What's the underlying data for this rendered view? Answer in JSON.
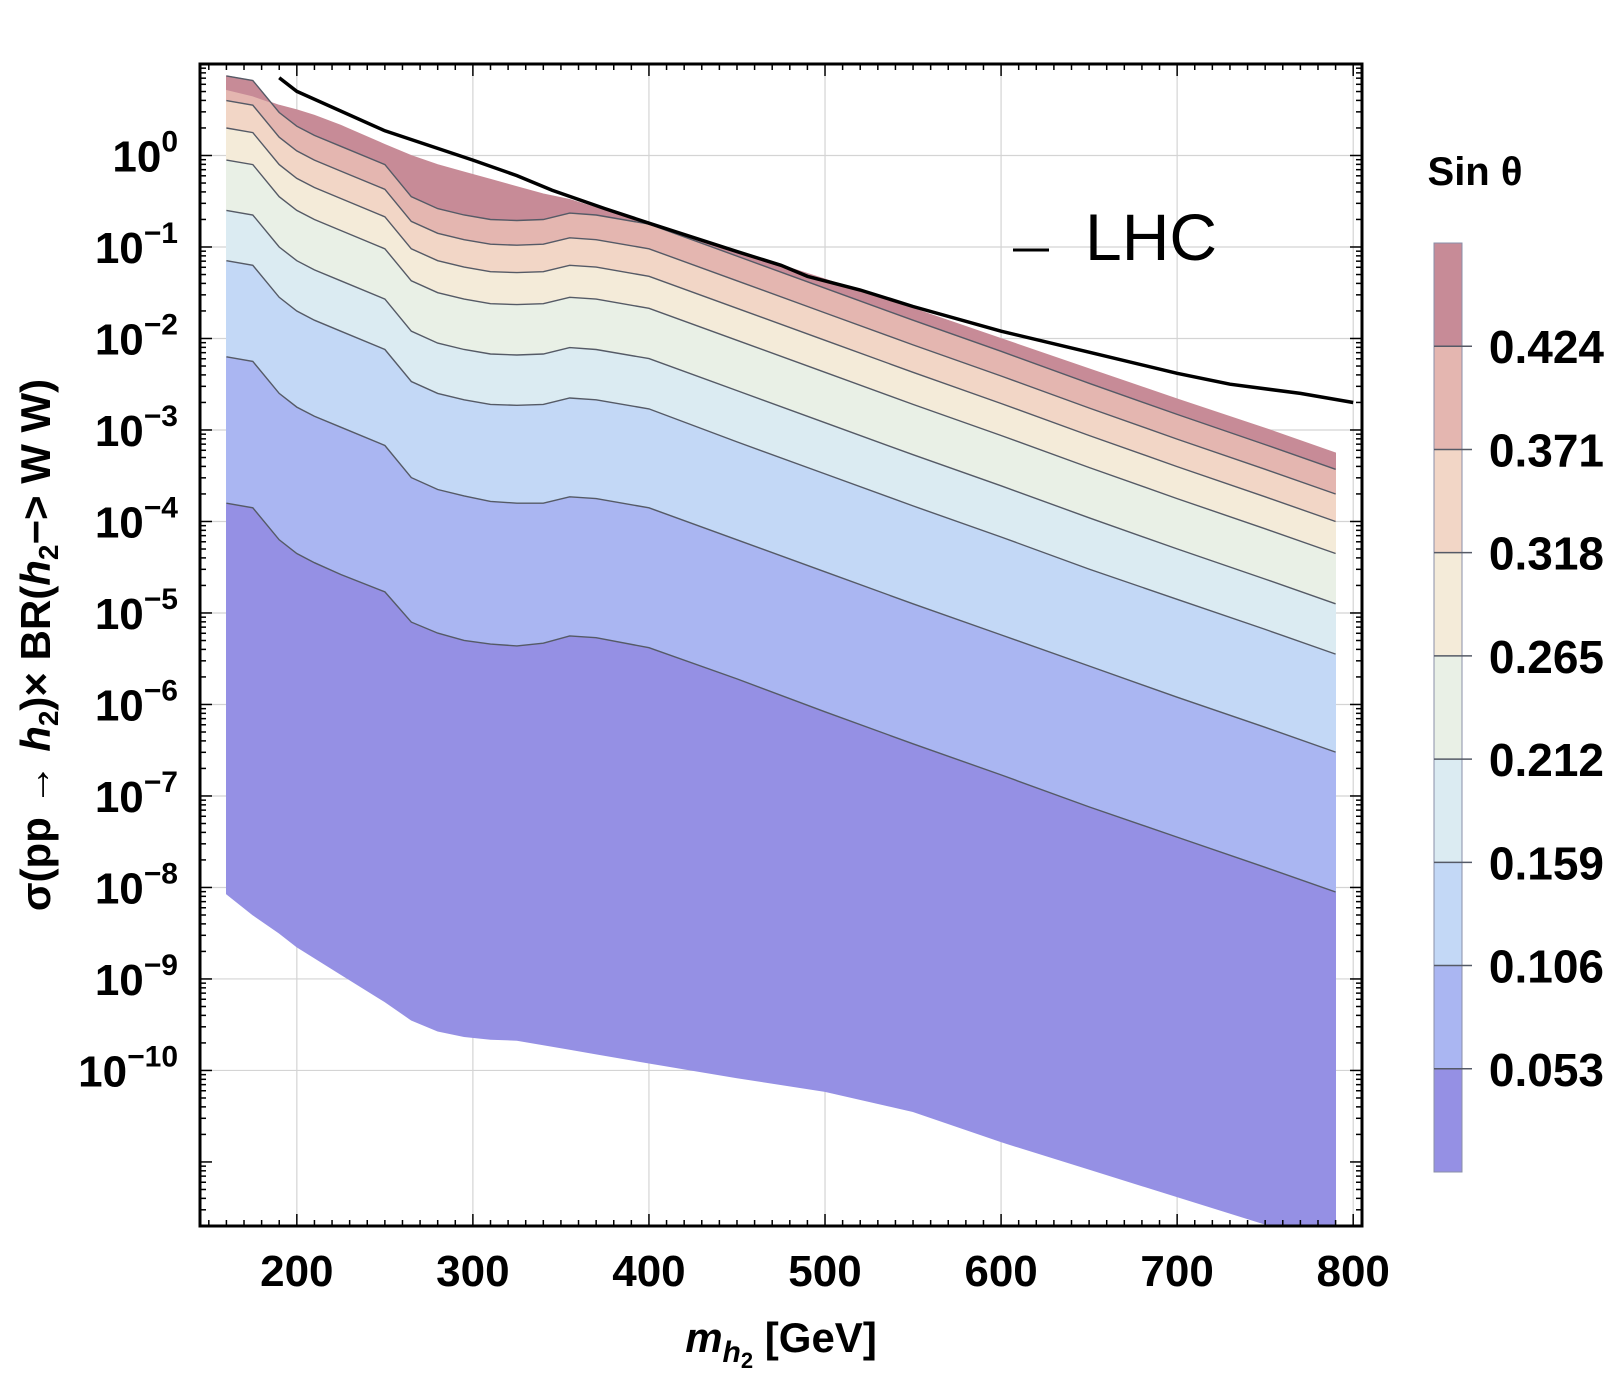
{
  "chart_data": {
    "type": "area",
    "xlabel": {
      "main": "m",
      "sub": "h",
      "subsub": "2",
      "unit": " [GeV]"
    },
    "ylabel": {
      "prefix": "σ(pp → ",
      "h": "h",
      "hsub": "2",
      "mid": ")× BR(",
      "h2": "h",
      "h2sub": "2",
      "suffix": "−> W W)"
    },
    "xlim": [
      145,
      805
    ],
    "ylim_log10": [
      -11.7,
      1.0
    ],
    "grid": true,
    "x_ticks": [
      200,
      300,
      400,
      500,
      600,
      700,
      800
    ],
    "x_tick_labels": [
      "200",
      "300",
      "400",
      "500",
      "600",
      "700",
      "800"
    ],
    "y_ticks_log10": [
      0,
      -1,
      -2,
      -3,
      -4,
      -5,
      -6,
      -7,
      -8,
      -9,
      -10
    ],
    "y_tick_base": "10",
    "y_tick_exponents": [
      "0",
      "−1",
      "−2",
      "−3",
      "−4",
      "−5",
      "−6",
      "−7",
      "−8",
      "−9",
      "−10"
    ],
    "legend": {
      "label": "LHC",
      "position": "top-right"
    },
    "lhc_limit": {
      "name": "LHC",
      "x": [
        190,
        200,
        250,
        300,
        325,
        345,
        375,
        400,
        450,
        475,
        490,
        520,
        550,
        600,
        650,
        700,
        730,
        770,
        800
      ],
      "log10_y": [
        0.85,
        0.7,
        0.27,
        -0.05,
        -0.22,
        -0.38,
        -0.58,
        -0.74,
        -1.05,
        -1.2,
        -1.32,
        -1.47,
        -1.65,
        -1.92,
        -2.15,
        -2.38,
        -2.5,
        -2.6,
        -2.7
      ]
    },
    "contour_x": [
      160,
      175,
      190,
      200,
      210,
      225,
      250,
      265,
      280,
      295,
      310,
      325,
      340,
      355,
      370,
      400,
      450,
      500,
      550,
      600,
      650,
      700,
      750,
      790
    ],
    "contours": [
      {
        "level": "0.000",
        "log10_y": [
          -8.07,
          -8.3,
          -8.5,
          -8.65,
          -8.77,
          -8.95,
          -9.25,
          -9.45,
          -9.57,
          -9.63,
          -9.66,
          -9.67,
          -9.72,
          -9.77,
          -9.82,
          -9.92,
          -10.08,
          -10.23,
          -10.45,
          -10.78,
          -11.08,
          -11.38,
          -11.68,
          -11.92
        ]
      },
      {
        "level": "0.053",
        "log10_y": [
          -3.8,
          -3.85,
          -4.2,
          -4.35,
          -4.45,
          -4.58,
          -4.77,
          -5.1,
          -5.22,
          -5.3,
          -5.34,
          -5.36,
          -5.33,
          -5.25,
          -5.27,
          -5.38,
          -5.72,
          -6.08,
          -6.43,
          -6.77,
          -7.12,
          -7.45,
          -7.78,
          -8.05
        ]
      },
      {
        "level": "0.106",
        "log10_y": [
          -2.2,
          -2.25,
          -2.6,
          -2.75,
          -2.85,
          -2.97,
          -3.17,
          -3.52,
          -3.65,
          -3.72,
          -3.78,
          -3.8,
          -3.8,
          -3.73,
          -3.75,
          -3.85,
          -4.2,
          -4.55,
          -4.9,
          -5.24,
          -5.58,
          -5.92,
          -6.25,
          -6.52
        ]
      },
      {
        "level": "0.159",
        "log10_y": [
          -1.15,
          -1.2,
          -1.55,
          -1.7,
          -1.8,
          -1.92,
          -2.12,
          -2.47,
          -2.6,
          -2.67,
          -2.72,
          -2.73,
          -2.72,
          -2.65,
          -2.67,
          -2.77,
          -3.13,
          -3.48,
          -3.83,
          -4.17,
          -4.52,
          -4.85,
          -5.18,
          -5.45
        ]
      },
      {
        "level": "0.212",
        "log10_y": [
          -0.6,
          -0.65,
          -1.0,
          -1.15,
          -1.25,
          -1.37,
          -1.57,
          -1.92,
          -2.05,
          -2.12,
          -2.17,
          -2.18,
          -2.17,
          -2.1,
          -2.12,
          -2.22,
          -2.57,
          -2.92,
          -3.27,
          -3.61,
          -3.96,
          -4.3,
          -4.63,
          -4.9
        ]
      },
      {
        "level": "0.265",
        "log10_y": [
          -0.05,
          -0.1,
          -0.45,
          -0.6,
          -0.7,
          -0.82,
          -1.02,
          -1.37,
          -1.5,
          -1.57,
          -1.62,
          -1.63,
          -1.62,
          -1.55,
          -1.57,
          -1.67,
          -2.02,
          -2.37,
          -2.72,
          -3.06,
          -3.41,
          -3.75,
          -4.08,
          -4.35
        ]
      },
      {
        "level": "0.318",
        "log10_y": [
          0.3,
          0.25,
          -0.1,
          -0.25,
          -0.35,
          -0.47,
          -0.67,
          -1.02,
          -1.15,
          -1.22,
          -1.27,
          -1.28,
          -1.27,
          -1.2,
          -1.22,
          -1.32,
          -1.67,
          -2.02,
          -2.37,
          -2.71,
          -3.06,
          -3.4,
          -3.73,
          -4.0
        ]
      },
      {
        "level": "0.371",
        "log10_y": [
          0.6,
          0.55,
          0.2,
          0.05,
          -0.05,
          -0.17,
          -0.37,
          -0.72,
          -0.85,
          -0.92,
          -0.97,
          -0.98,
          -0.97,
          -0.9,
          -0.92,
          -1.02,
          -1.37,
          -1.72,
          -2.07,
          -2.41,
          -2.76,
          -3.1,
          -3.43,
          -3.7
        ]
      },
      {
        "level": "0.424",
        "log10_y": [
          0.87,
          0.82,
          0.47,
          0.32,
          0.22,
          0.1,
          -0.1,
          -0.45,
          -0.58,
          -0.65,
          -0.7,
          -0.71,
          -0.7,
          -0.63,
          -0.65,
          -0.75,
          -1.1,
          -1.45,
          -1.8,
          -2.14,
          -2.49,
          -2.83,
          -3.16,
          -3.43
        ]
      },
      {
        "level": "max",
        "log10_y": [
          0.72,
          0.65,
          0.55,
          0.5,
          0.44,
          0.33,
          0.12,
          0.0,
          -0.1,
          -0.18,
          -0.26,
          -0.34,
          -0.42,
          -0.48,
          -0.57,
          -0.74,
          -1.04,
          -1.35,
          -1.67,
          -2.0,
          -2.33,
          -2.66,
          -2.98,
          -3.25
        ]
      }
    ],
    "colorbar": {
      "title": "Sin θ",
      "tick_labels": [
        "0.424",
        "0.371",
        "0.318",
        "0.265",
        "0.212",
        "0.159",
        "0.106",
        "0.053"
      ],
      "band_colors": [
        "#9590e4",
        "#aab6f2",
        "#c3d8f6",
        "#dbebf2",
        "#e9f0e6",
        "#f4ebd9",
        "#f2d6c6",
        "#e4b6b0",
        "#c78b97"
      ]
    }
  }
}
